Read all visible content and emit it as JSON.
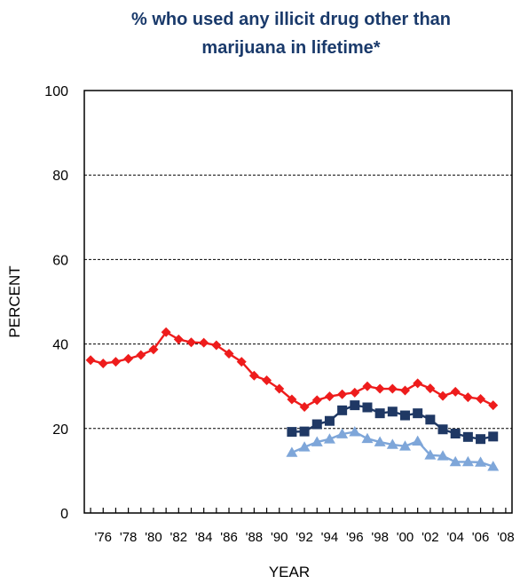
{
  "chart_data": {
    "type": "line",
    "title_line1": "% who used any illicit drug other than",
    "title_line2": "marijuana in lifetime*",
    "xlabel": "YEAR",
    "ylabel": "PERCENT",
    "ylim": [
      0,
      100
    ],
    "yticks": [
      "0",
      "20",
      "40",
      "60",
      "80",
      "100"
    ],
    "xlim": [
      1975,
      2008
    ],
    "xtick_labels": [
      "'76",
      "'78",
      "'80",
      "'82",
      "'84",
      "'86",
      "'88",
      "'90",
      "'92",
      "'94",
      "'96",
      "'98",
      "'00",
      "'02",
      "'04",
      "'06",
      "'08"
    ],
    "grid": "horizontal-dashed",
    "series": [
      {
        "color": "#ee1c1c",
        "marker": "diamond",
        "x": [
          1975,
          1976,
          1977,
          1978,
          1979,
          1980,
          1981,
          1982,
          1983,
          1984,
          1985,
          1986,
          1987,
          1988,
          1989,
          1990,
          1991,
          1992,
          1993,
          1994,
          1995,
          1996,
          1997,
          1998,
          1999,
          2000,
          2001,
          2002,
          2003,
          2004,
          2005,
          2006,
          2007
        ],
        "values": [
          36.2,
          35.4,
          35.8,
          36.5,
          37.4,
          38.7,
          42.8,
          41.1,
          40.4,
          40.3,
          39.7,
          37.7,
          35.8,
          32.5,
          31.4,
          29.4,
          26.9,
          25.1,
          26.7,
          27.6,
          28.1,
          28.5,
          30.0,
          29.4,
          29.4,
          29.0,
          30.7,
          29.5,
          27.7,
          28.7,
          27.4,
          27.0,
          25.5
        ]
      },
      {
        "color": "#1f3864",
        "marker": "square",
        "x": [
          1991,
          1992,
          1993,
          1994,
          1995,
          1996,
          1997,
          1998,
          1999,
          2000,
          2001,
          2002,
          2003,
          2004,
          2005,
          2006,
          2007
        ],
        "values": [
          19.2,
          19.3,
          21.0,
          21.8,
          24.3,
          25.5,
          25.0,
          23.6,
          24.0,
          23.1,
          23.6,
          22.1,
          19.8,
          18.8,
          18.0,
          17.5,
          18.1
        ]
      },
      {
        "color": "#7ea6d9",
        "marker": "triangle",
        "x": [
          1991,
          1992,
          1993,
          1994,
          1995,
          1996,
          1997,
          1998,
          1999,
          2000,
          2001,
          2002,
          2003,
          2004,
          2005,
          2006,
          2007
        ],
        "values": [
          14.3,
          15.6,
          16.8,
          17.5,
          18.7,
          19.2,
          17.6,
          16.8,
          16.2,
          15.8,
          17.0,
          13.7,
          13.5,
          12.1,
          12.1,
          12.0,
          11.0
        ]
      }
    ]
  }
}
